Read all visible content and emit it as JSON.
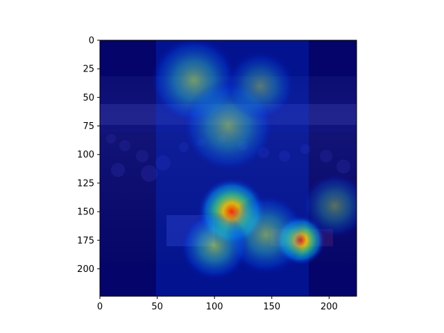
{
  "figure": {
    "colormap": "jet",
    "overlay_alpha": 0.5,
    "background_color": "#ffffff",
    "axis_color": "#000000",
    "image_description_short": "crowded event hall with heatmap overlay"
  },
  "axes": {
    "x_ticks": [
      "0",
      "50",
      "100",
      "150",
      "200"
    ],
    "y_ticks": [
      "0",
      "25",
      "50",
      "75",
      "100",
      "125",
      "150",
      "175",
      "200"
    ],
    "xlim": [
      0,
      224
    ],
    "ylim": [
      224,
      0
    ]
  },
  "heatmap_blobs": [
    {
      "cx": 82,
      "cy": 35,
      "r": 38,
      "intensity": 0.55
    },
    {
      "cx": 112,
      "cy": 75,
      "r": 40,
      "intensity": 0.5
    },
    {
      "cx": 115,
      "cy": 150,
      "r": 30,
      "intensity": 0.8
    },
    {
      "cx": 175,
      "cy": 175,
      "r": 22,
      "intensity": 1.0
    },
    {
      "cx": 145,
      "cy": 170,
      "r": 35,
      "intensity": 0.55
    },
    {
      "cx": 100,
      "cy": 180,
      "r": 30,
      "intensity": 0.6
    },
    {
      "cx": 205,
      "cy": 145,
      "r": 28,
      "intensity": 0.35
    },
    {
      "cx": 140,
      "cy": 40,
      "r": 30,
      "intensity": 0.35
    }
  ]
}
